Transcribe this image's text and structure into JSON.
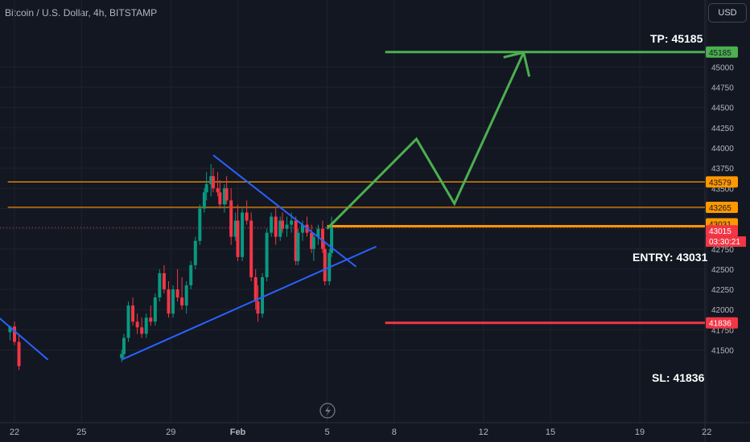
{
  "header": {
    "symbol_title": "Bitcoin / U.S. Dollar, 4h, BITSTAMP",
    "currency_button": "USD"
  },
  "levels": {
    "tp_label": "TP: 45185",
    "entry_label": "ENTRY: 43031",
    "sl_label": "SL: 41836",
    "live_time": "03:30:21"
  },
  "colors": {
    "background": "#131722",
    "grid": "#1e222d",
    "axis_text": "#b2b5be",
    "up": "#089981",
    "down": "#f23645",
    "orange": "#ff9800",
    "blue": "#2962ff",
    "green": "#4caf50",
    "red": "#f23645"
  },
  "chart_data": {
    "type": "candlestick",
    "title": "Bitcoin / U.S. Dollar, 4h, BITSTAMP",
    "y_ticks": [
      41500,
      41750,
      42000,
      42250,
      42500,
      42750,
      43000,
      43250,
      43500,
      43750,
      44000,
      44250,
      44500,
      44750,
      45000
    ],
    "x_ticks": [
      {
        "label": "22",
        "day": 22
      },
      {
        "label": "25",
        "day": 25
      },
      {
        "label": "29",
        "day": 29
      },
      {
        "label": "Feb",
        "day": 32
      },
      {
        "label": "5",
        "day": 36
      },
      {
        "label": "8",
        "day": 39
      },
      {
        "label": "12",
        "day": 43
      },
      {
        "label": "15",
        "day": 46
      },
      {
        "label": "19",
        "day": 50
      },
      {
        "label": "22",
        "day": 53
      }
    ],
    "price_labels": [
      {
        "value": 45185,
        "text": "45185",
        "color": "#4caf50"
      },
      {
        "value": 43579,
        "text": "43579",
        "color": "#ff9800"
      },
      {
        "value": 43265,
        "text": "43265",
        "color": "#ff9800"
      },
      {
        "value": 43031,
        "text": "43031",
        "color": "#ff9800"
      },
      {
        "value": 43015,
        "text": "43015",
        "color": "#f23645"
      },
      {
        "value": 41836,
        "text": "41836",
        "color": "#f23645"
      }
    ],
    "horizontal_levels": [
      {
        "name": "resistance-1",
        "value": 43579,
        "color": "#ff9800",
        "from_day": 21.7,
        "to_day": 57
      },
      {
        "name": "resistance-2",
        "value": 43265,
        "color": "#ff9800",
        "from_day": 21.7,
        "to_day": 57
      },
      {
        "name": "entry",
        "value": 43031,
        "color": "#ff9800",
        "from_day": 36.0,
        "to_day": 57
      },
      {
        "name": "take-profit",
        "value": 45185,
        "color": "#4caf50",
        "from_day": 38.6,
        "to_day": 57
      },
      {
        "name": "stop-loss",
        "value": 41836,
        "color": "#f23645",
        "from_day": 38.6,
        "to_day": 57
      }
    ],
    "trendlines": [
      {
        "name": "upper-triangle",
        "points": [
          [
            30.9,
            43910
          ],
          [
            37.3,
            42530
          ]
        ],
        "color": "#2962ff"
      },
      {
        "name": "lower-triangle",
        "points": [
          [
            26.8,
            41380
          ],
          [
            38.2,
            42780
          ]
        ],
        "color": "#2962ff"
      },
      {
        "name": "left-fragment",
        "points": [
          [
            21.3,
            41900
          ],
          [
            23.5,
            41380
          ]
        ],
        "color": "#2962ff"
      }
    ],
    "projection": [
      [
        36.0,
        43000
      ],
      [
        40.0,
        44110
      ],
      [
        41.7,
        43310
      ],
      [
        44.8,
        45180
      ]
    ],
    "arrow_head_tip": [
      44.8,
      45180
    ],
    "candles": [
      [
        21.8,
        41720,
        41800,
        41620,
        41790
      ],
      [
        22.0,
        41790,
        41850,
        41560,
        41600
      ],
      [
        22.2,
        41600,
        41680,
        41250,
        41300
      ],
      [
        26.8,
        41400,
        41500,
        41350,
        41450
      ],
      [
        26.9,
        41450,
        41700,
        41400,
        41650
      ],
      [
        27.1,
        41650,
        42100,
        41600,
        42050
      ],
      [
        27.3,
        42050,
        42150,
        41800,
        41850
      ],
      [
        27.5,
        41850,
        41950,
        41700,
        41780
      ],
      [
        27.7,
        41780,
        41900,
        41650,
        41700
      ],
      [
        27.9,
        41700,
        41950,
        41650,
        41900
      ],
      [
        28.1,
        41900,
        42050,
        41800,
        41850
      ],
      [
        28.3,
        41850,
        42200,
        41800,
        42150
      ],
      [
        28.5,
        42150,
        42500,
        42100,
        42450
      ],
      [
        28.7,
        42450,
        42550,
        42200,
        42250
      ],
      [
        28.9,
        42250,
        42350,
        41900,
        41950
      ],
      [
        29.1,
        41950,
        42300,
        41900,
        42250
      ],
      [
        29.3,
        42250,
        42500,
        42100,
        42150
      ],
      [
        29.5,
        42150,
        42400,
        42000,
        42050
      ],
      [
        29.7,
        42050,
        42350,
        41950,
        42300
      ],
      [
        29.9,
        42300,
        42600,
        42250,
        42550
      ],
      [
        30.1,
        42550,
        42900,
        42500,
        42850
      ],
      [
        30.3,
        42850,
        43300,
        42800,
        43250
      ],
      [
        30.5,
        43250,
        43500,
        43200,
        43450
      ],
      [
        30.6,
        43450,
        43700,
        43350,
        43550
      ],
      [
        30.8,
        43550,
        43800,
        43400,
        43650
      ],
      [
        30.9,
        43650,
        43750,
        43450,
        43500
      ],
      [
        31.1,
        43500,
        43700,
        43400,
        43450
      ],
      [
        31.2,
        43450,
        43600,
        43250,
        43300
      ],
      [
        31.4,
        43300,
        43550,
        43200,
        43500
      ],
      [
        31.5,
        43500,
        43650,
        43300,
        43350
      ],
      [
        31.7,
        43350,
        43500,
        42800,
        42900
      ],
      [
        31.9,
        42900,
        43200,
        42850,
        43100
      ],
      [
        32.0,
        43100,
        43300,
        42600,
        42650
      ],
      [
        32.2,
        42650,
        43250,
        42600,
        43200
      ],
      [
        32.4,
        43200,
        43350,
        43050,
        43100
      ],
      [
        32.6,
        43100,
        43200,
        42350,
        42400
      ],
      [
        32.8,
        42400,
        42500,
        42000,
        42100
      ],
      [
        32.9,
        42100,
        42300,
        41850,
        41950
      ],
      [
        33.1,
        41950,
        42450,
        41900,
        42400
      ],
      [
        33.3,
        42400,
        43000,
        42350,
        42950
      ],
      [
        33.5,
        42950,
        43200,
        42900,
        43150
      ],
      [
        33.7,
        43150,
        43250,
        42800,
        42900
      ],
      [
        33.9,
        42900,
        43150,
        42850,
        43100
      ],
      [
        34.0,
        43100,
        43200,
        42950,
        43000
      ],
      [
        34.2,
        43000,
        43150,
        42900,
        43050
      ],
      [
        34.4,
        43050,
        43200,
        42950,
        43100
      ],
      [
        34.6,
        43100,
        43150,
        42550,
        42600
      ],
      [
        34.7,
        42600,
        43000,
        42550,
        42950
      ],
      [
        34.9,
        42950,
        43100,
        42850,
        43050
      ],
      [
        35.1,
        43050,
        43150,
        42900,
        42950
      ],
      [
        35.3,
        42950,
        43050,
        42700,
        42750
      ],
      [
        35.4,
        42750,
        42950,
        42600,
        42900
      ],
      [
        35.6,
        42900,
        43050,
        42800,
        43000
      ],
      [
        35.8,
        43000,
        43100,
        42700,
        42750
      ],
      [
        35.9,
        42750,
        42850,
        42300,
        42350
      ],
      [
        36.1,
        42350,
        42750,
        42300,
        42700
      ],
      [
        36.2,
        42700,
        43150,
        42650,
        43015
      ]
    ]
  }
}
